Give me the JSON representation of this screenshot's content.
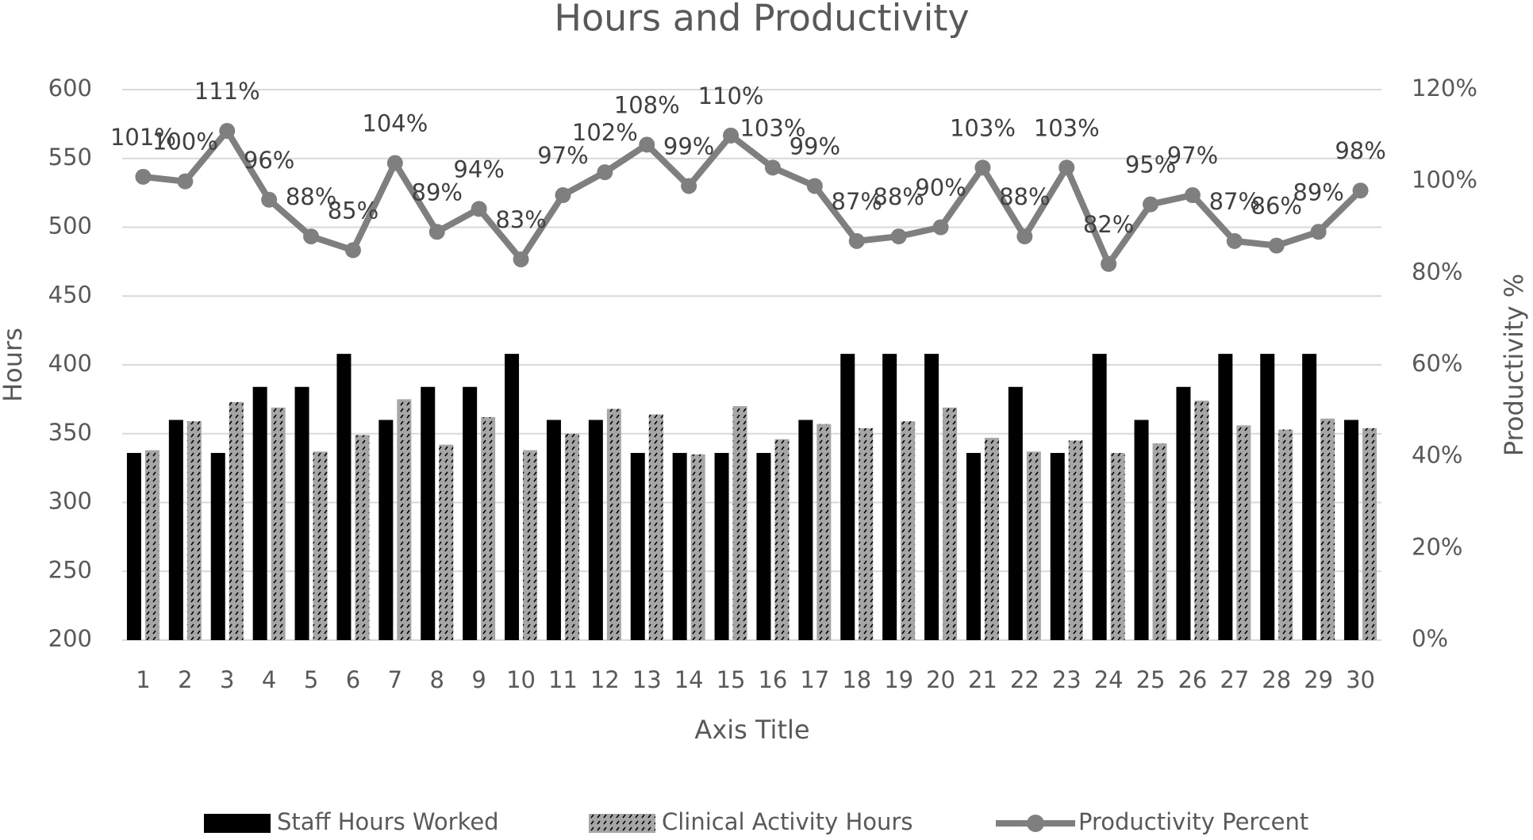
{
  "chart_data": {
    "type": "bar-line",
    "title": "Hours and Productivity",
    "x_label": "Axis Title",
    "y_label": "Hours",
    "y2_label": "Productivity %",
    "categories": [
      "1",
      "2",
      "3",
      "4",
      "5",
      "6",
      "7",
      "8",
      "9",
      "10",
      "11",
      "12",
      "13",
      "14",
      "15",
      "16",
      "17",
      "18",
      "19",
      "20",
      "21",
      "22",
      "23",
      "24",
      "25",
      "26",
      "27",
      "28",
      "29",
      "30"
    ],
    "series": [
      {
        "name": "Staff Hours Worked",
        "type": "bar",
        "color": "#000000",
        "values": [
          336,
          360,
          336,
          384,
          384,
          408,
          360,
          384,
          384,
          408,
          360,
          360,
          336,
          336,
          336,
          336,
          360,
          408,
          408,
          408,
          336,
          384,
          336,
          408,
          360,
          384,
          408,
          408,
          408,
          360
        ]
      },
      {
        "name": "Clinical Activity Hours",
        "type": "bar",
        "color": "#a6a6a6",
        "values": [
          338,
          359,
          373,
          369,
          337,
          349,
          375,
          342,
          362,
          338,
          350,
          368,
          364,
          335,
          370,
          346,
          357,
          354,
          359,
          369,
          347,
          337,
          345,
          336,
          343,
          374,
          356,
          353,
          361,
          354
        ]
      },
      {
        "name": "Productivity Percent",
        "type": "line",
        "axis": "y2",
        "color": "#7f7f7f",
        "values": [
          101,
          100,
          111,
          96,
          88,
          85,
          104,
          89,
          94,
          83,
          97,
          102,
          108,
          99,
          110,
          103,
          99,
          87,
          88,
          90,
          103,
          88,
          103,
          82,
          95,
          97,
          87,
          86,
          89,
          98
        ],
        "value_labels": [
          "101%",
          "100%",
          "111%",
          "96%",
          "88%",
          "85%",
          "104%",
          "89%",
          "94%",
          "83%",
          "97%",
          "102%",
          "108%",
          "99%",
          "110%",
          "103%",
          "99%",
          "87%",
          "88%",
          "90%",
          "103%",
          "88%",
          "103%",
          "82%",
          "95%",
          "97%",
          "87%",
          "86%",
          "89%",
          "98%"
        ]
      }
    ],
    "ylim": [
      200,
      600
    ],
    "yticks": [
      200,
      250,
      300,
      350,
      400,
      450,
      500,
      550,
      600
    ],
    "y2lim": [
      0,
      120
    ],
    "y2ticks": [
      {
        "value": 0,
        "label": "0%"
      },
      {
        "value": 20,
        "label": "20%"
      },
      {
        "value": 40,
        "label": "40%"
      },
      {
        "value": 60,
        "label": "60%"
      },
      {
        "value": 80,
        "label": "80%"
      },
      {
        "value": 100,
        "label": "100%"
      },
      {
        "value": 120,
        "label": "120%"
      }
    ],
    "grid": true,
    "legend": "bottom"
  }
}
